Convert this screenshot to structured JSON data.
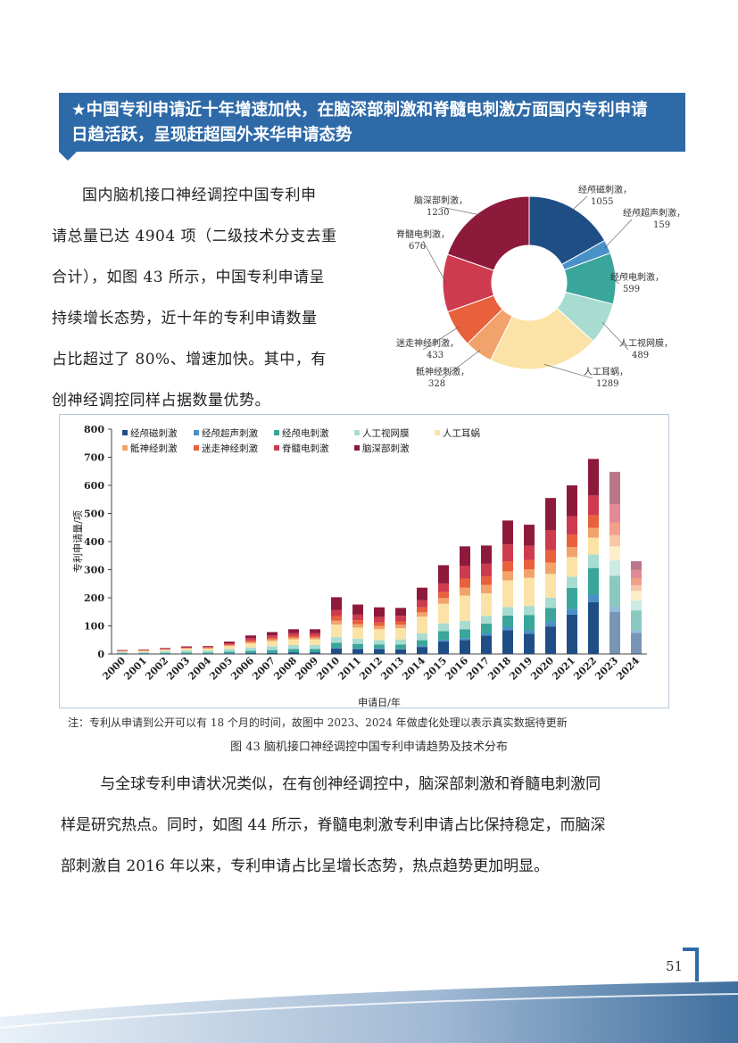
{
  "header": {
    "line1": "★中国专利申请近十年增速加快，在脑深部刺激和脊髓电刺激方面国内专利申请",
    "line2": "日趋活跃，呈现赶超国外来华申请态势"
  },
  "intro": {
    "lines": [
      "国内脑机接口神经调控中国专利申",
      "请总量已达 4904 项（二级技术分支去重",
      "合计），如图 43 所示，中国专利申请呈",
      "持续增长态势，近十年的专利申请数量",
      "占比超过了 80%、增速加快。其中，有",
      "创神经调控同样占据数量优势。"
    ]
  },
  "colors": {
    "banner": "#2e6aa8",
    "series": [
      "#1f4e85",
      "#4a90c8",
      "#3aa59a",
      "#a9dcd0",
      "#fbe3a7",
      "#f2a36b",
      "#e8603c",
      "#cf3b4e",
      "#8e1a3b"
    ]
  },
  "chart_data": [
    {
      "type": "pie",
      "labels": [
        "经颅磁刺激",
        "经颅超声刺激",
        "经颅电刺激",
        "人工视网膜",
        "人工耳蜗",
        "骶神经刺激",
        "迷走神经刺激",
        "脊髓电刺激",
        "脑深部刺激"
      ],
      "values": [
        1055,
        159,
        599,
        489,
        1289,
        328,
        433,
        676,
        1230
      ],
      "style": "donut"
    },
    {
      "type": "bar",
      "stacked": true,
      "xlabel": "申请日/年",
      "ylabel": "专利申请量/项",
      "ylim": [
        0,
        800
      ],
      "yticks": [
        0,
        100,
        200,
        300,
        400,
        500,
        600,
        700,
        800
      ],
      "categories": [
        "2000",
        "2001",
        "2002",
        "2003",
        "2004",
        "2005",
        "2006",
        "2007",
        "2008",
        "2009",
        "2010",
        "2011",
        "2012",
        "2013",
        "2014",
        "2015",
        "2016",
        "2017",
        "2018",
        "2019",
        "2020",
        "2021",
        "2022",
        "2023",
        "2024"
      ],
      "faded_categories": [
        "2023",
        "2024"
      ],
      "legend_position": "top",
      "series": [
        {
          "name": "经颅磁刺激",
          "values": [
            1,
            1,
            1,
            1,
            1,
            2,
            3,
            4,
            6,
            6,
            20,
            18,
            18,
            16,
            25,
            45,
            50,
            65,
            85,
            72,
            98,
            140,
            185,
            150,
            75
          ]
        },
        {
          "name": "经颅超声刺激",
          "values": [
            0,
            0,
            0,
            0,
            0,
            0,
            0,
            0,
            0,
            0,
            2,
            2,
            2,
            2,
            4,
            6,
            6,
            8,
            12,
            12,
            16,
            20,
            26,
            18,
            10
          ]
        },
        {
          "name": "经颅电刺激",
          "values": [
            2,
            2,
            3,
            4,
            4,
            6,
            8,
            10,
            12,
            12,
            18,
            16,
            14,
            16,
            20,
            30,
            32,
            35,
            40,
            55,
            50,
            75,
            95,
            110,
            70
          ]
        },
        {
          "name": "人工视网膜",
          "values": [
            3,
            4,
            6,
            8,
            8,
            10,
            12,
            14,
            14,
            14,
            20,
            18,
            16,
            18,
            24,
            28,
            30,
            28,
            30,
            32,
            36,
            40,
            48,
            55,
            35
          ]
        },
        {
          "name": "人工耳蜗",
          "values": [
            3,
            4,
            5,
            6,
            6,
            10,
            15,
            18,
            20,
            20,
            45,
            40,
            38,
            40,
            60,
            70,
            90,
            80,
            95,
            100,
            85,
            70,
            60,
            50,
            35
          ]
        },
        {
          "name": "骶神经刺激",
          "values": [
            1,
            1,
            1,
            2,
            2,
            3,
            5,
            6,
            6,
            6,
            14,
            12,
            12,
            12,
            15,
            20,
            28,
            30,
            32,
            30,
            40,
            35,
            35,
            40,
            20
          ]
        },
        {
          "name": "迷走神经刺激",
          "values": [
            1,
            1,
            1,
            1,
            2,
            3,
            5,
            6,
            6,
            6,
            16,
            14,
            12,
            12,
            18,
            22,
            32,
            30,
            36,
            34,
            45,
            45,
            45,
            45,
            25
          ]
        },
        {
          "name": "脊髓电刺激",
          "values": [
            1,
            1,
            2,
            2,
            2,
            4,
            8,
            8,
            10,
            10,
            22,
            20,
            20,
            20,
            25,
            30,
            45,
            45,
            60,
            50,
            70,
            65,
            70,
            65,
            30
          ]
        },
        {
          "name": "脑深部刺激",
          "values": [
            2,
            2,
            2,
            3,
            3,
            6,
            10,
            12,
            14,
            14,
            45,
            36,
            34,
            28,
            45,
            65,
            70,
            65,
            85,
            75,
            115,
            110,
            130,
            115,
            30
          ]
        }
      ]
    }
  ],
  "note": "注：专利从申请到公开可以有 18 个月的时间，故图中 2023、2024 年做虚化处理以表示真实数据待更新",
  "caption": "图 43 脑机接口神经调控中国专利申请趋势及技术分布",
  "paragraph": {
    "lines": [
      "与全球专利申请状况类似，在有创神经调控中，脑深部刺激和脊髓电刺激同",
      "样是研究热点。同时，如图 44 所示，脊髓电刺激专利申请占比保持稳定，而脑深",
      "部刺激自 2016 年以来，专利申请占比呈增长态势，热点趋势更加明显。"
    ]
  },
  "page_number": "51"
}
